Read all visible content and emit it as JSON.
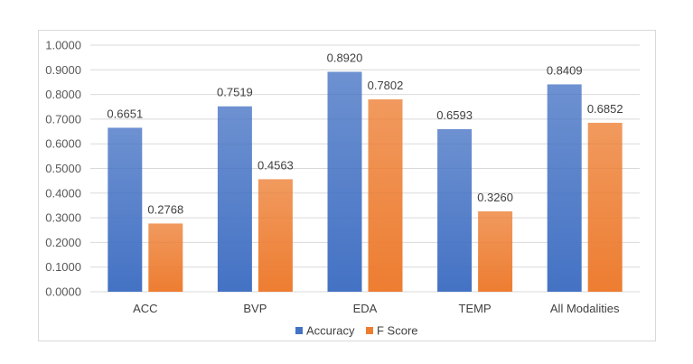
{
  "chart_data": {
    "type": "bar",
    "categories": [
      "ACC",
      "BVP",
      "EDA",
      "TEMP",
      "All Modalities"
    ],
    "series": [
      {
        "name": "Accuracy",
        "values": [
          0.6651,
          0.7519,
          0.892,
          0.6593,
          0.8409
        ],
        "labels": [
          "0.6651",
          "0.7519",
          "0.8920",
          "0.6593",
          "0.8409"
        ],
        "color": "#4472c4"
      },
      {
        "name": "F Score",
        "values": [
          0.2768,
          0.4563,
          0.7802,
          0.326,
          0.6852
        ],
        "labels": [
          "0.2768",
          "0.4563",
          "0.7802",
          "0.3260",
          "0.6852"
        ],
        "color": "#ed7d31"
      }
    ],
    "ylim": [
      0,
      1
    ],
    "yticks": [
      0,
      0.1,
      0.2,
      0.3,
      0.4,
      0.5,
      0.6,
      0.7,
      0.8,
      0.9,
      1.0
    ],
    "ytick_labels": [
      "0.0000",
      "0.1000",
      "0.2000",
      "0.3000",
      "0.4000",
      "0.5000",
      "0.6000",
      "0.7000",
      "0.8000",
      "0.9000",
      "1.0000"
    ],
    "grid": true,
    "legend_position": "bottom"
  }
}
